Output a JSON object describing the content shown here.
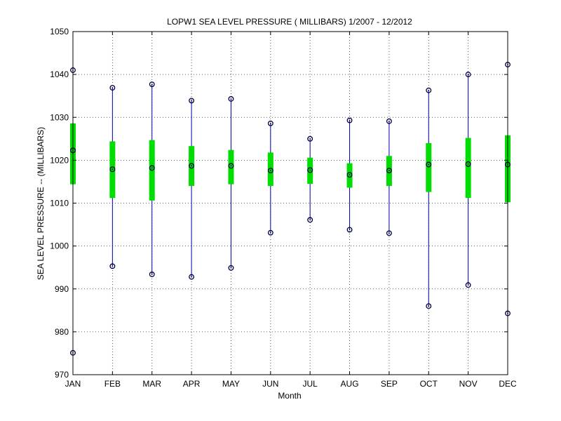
{
  "chart_data": {
    "type": "box",
    "title": "LOPW1  SEA LEVEL PRESSURE ( MILLIBARS) 1/2007 - 12/2012",
    "xlabel": "Month",
    "ylabel": "SEA LEVEL PRESSURE -- (MILLIBARS)",
    "ylim": [
      970,
      1050
    ],
    "yticks": [
      970,
      980,
      990,
      1000,
      1010,
      1020,
      1030,
      1040,
      1050
    ],
    "grid": true,
    "categories": [
      "JAN",
      "FEB",
      "MAR",
      "APR",
      "MAY",
      "JUN",
      "JUL",
      "AUG",
      "SEP",
      "OCT",
      "NOV",
      "DEC"
    ],
    "series": [
      {
        "min": [
          975.1,
          995.3,
          993.4,
          992.8,
          994.9,
          1003.1,
          1006.1,
          1003.8,
          1003.0,
          986.0,
          990.9,
          984.3
        ],
        "q1": [
          1014.4,
          1011.2,
          1010.6,
          1014.0,
          1014.4,
          1014.0,
          1014.5,
          1013.6,
          1014.0,
          1012.6,
          1011.2,
          1010.2
        ],
        "mean": [
          1022.3,
          1017.9,
          1018.2,
          1018.7,
          1018.7,
          1017.6,
          1017.7,
          1016.6,
          1017.6,
          1019.0,
          1019.1,
          1019.0
        ],
        "q3": [
          1028.6,
          1024.4,
          1024.7,
          1023.3,
          1022.4,
          1021.8,
          1020.6,
          1019.3,
          1021.0,
          1024.0,
          1025.2,
          1025.8
        ],
        "max": [
          1041.0,
          1036.9,
          1037.7,
          1033.9,
          1034.3,
          1028.6,
          1025.0,
          1029.3,
          1029.1,
          1036.3,
          1040.0,
          1042.3
        ]
      }
    ],
    "colors": {
      "whisker": "#0000aa",
      "box": "#00dd00",
      "marker": "#000044",
      "grid": "#333333"
    }
  }
}
